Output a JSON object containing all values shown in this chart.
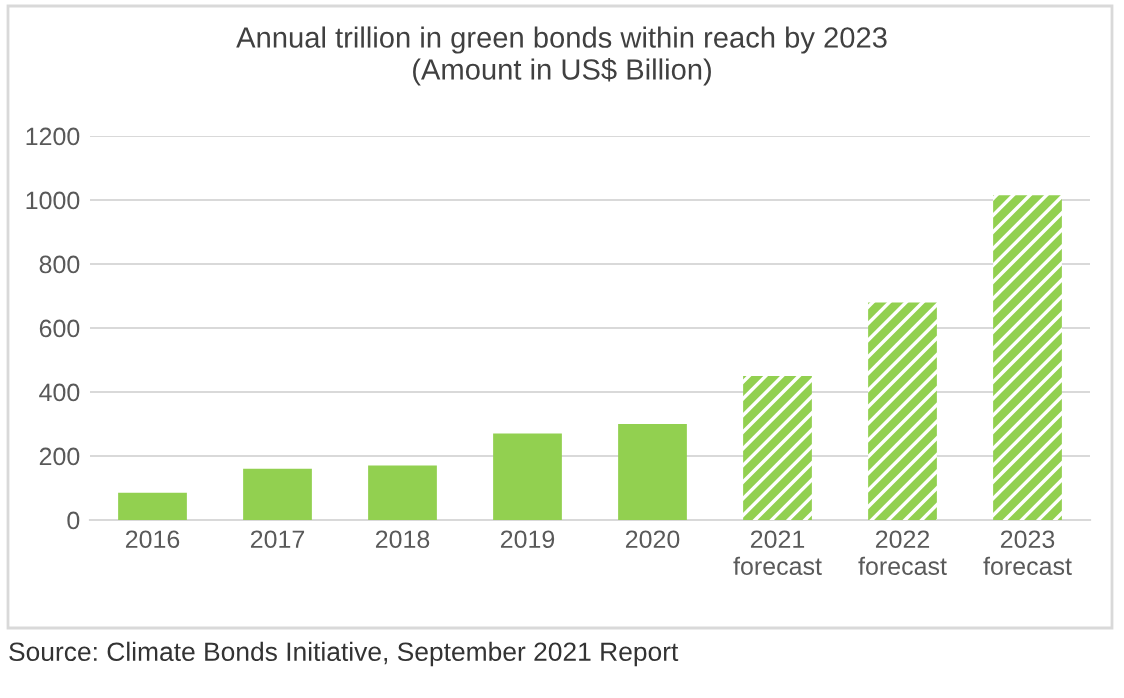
{
  "chart_data": {
    "type": "bar",
    "title": "Annual trillion in green bonds within reach by 2023\n(Amount in US$ Billion)",
    "categories": [
      "2016",
      "2017",
      "2018",
      "2019",
      "2020",
      "2021\nforecast",
      "2022\nforecast",
      "2023\nforecast"
    ],
    "series": [
      {
        "color": "#92d050",
        "values": [
          85,
          160,
          170,
          270,
          300,
          null,
          null,
          null
        ]
      },
      {
        "color": "#92d050",
        "values": [
          null,
          null,
          null,
          null,
          null,
          450,
          680,
          1015
        ]
      }
    ],
    "ylim": [
      0,
      1200
    ],
    "yticks": [
      0,
      200,
      400,
      600,
      800,
      1000,
      1200
    ],
    "grid": "y",
    "annotations": [
      "Source: Climate Bonds Initiative, September 2021 Report"
    ]
  }
}
